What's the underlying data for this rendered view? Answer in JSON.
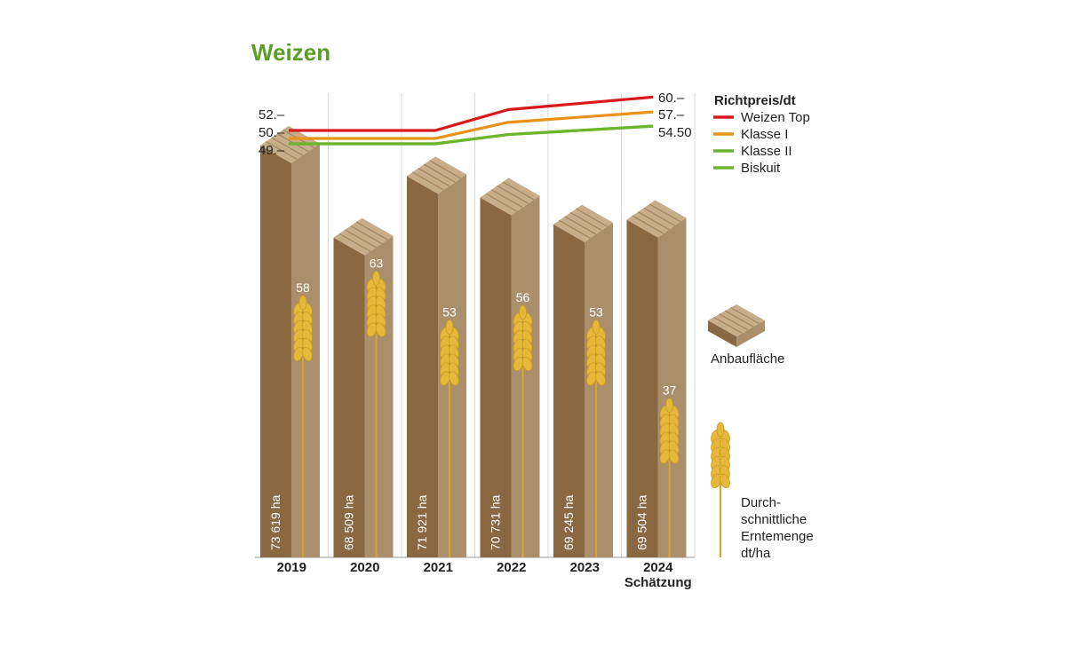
{
  "title": "Weizen",
  "chart_data": {
    "type": "bar",
    "categories": [
      "2019",
      "2020",
      "2021",
      "2022",
      "2023",
      "2024"
    ],
    "category_sublabels": [
      "",
      "",
      "",
      "",
      "",
      "Schätzung"
    ],
    "anbauflaeche": {
      "name": "Anbaufläche",
      "values": [
        73619,
        68509,
        71921,
        70731,
        69245,
        69504
      ],
      "labels": [
        "73 619 ha",
        "68 509 ha",
        "71 921 ha",
        "70 731 ha",
        "69 245 ha",
        "69 504 ha"
      ]
    },
    "ertrag": {
      "name": "Durch-schnittliche Erntemenge dt/ha",
      "name_lines": [
        "Durch-",
        "schnittliche",
        "Erntemenge",
        "dt/ha"
      ],
      "values": [
        58,
        63,
        53,
        56,
        53,
        37
      ]
    },
    "price_series_title": "Richtpreis/dt",
    "price_series": [
      {
        "name": "Weizen Top",
        "color": "#d7191c",
        "values": [
          52,
          52,
          52,
          57,
          58.5,
          60
        ]
      },
      {
        "name": "Klasse I",
        "color": "#e8921a",
        "values": [
          50,
          50,
          50,
          54.5,
          56,
          57
        ]
      },
      {
        "name": "Klasse II",
        "color": "#6cb52d",
        "values": [
          49,
          49,
          49,
          52.5,
          53.5,
          54.5
        ]
      },
      {
        "name": "Biskuit",
        "color": "#6cb52d",
        "values": [
          49,
          49,
          49,
          52.5,
          53.5,
          54.5
        ]
      }
    ],
    "price_start_labels": [
      "52.–",
      "50.–",
      "49.–"
    ],
    "price_end_labels": [
      "60.–",
      "57.–",
      "54.50"
    ],
    "colors": {
      "bar_front": "#8a6842",
      "bar_side": "#ab8e6c",
      "bar_top": "#c8ad8b",
      "wheat": "#e6b83a",
      "wheat_stem": "#d7a72a"
    }
  }
}
